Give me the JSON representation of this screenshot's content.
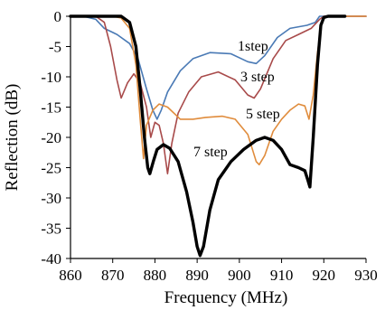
{
  "chart_data": {
    "type": "line",
    "xlabel": "Frequency (MHz)",
    "ylabel": "Reflection (dB)",
    "xlim": [
      860,
      930
    ],
    "ylim": [
      -40,
      0
    ],
    "x_ticks": [
      860,
      870,
      880,
      890,
      900,
      910,
      920,
      930
    ],
    "y_ticks": [
      0,
      -5,
      -10,
      -15,
      -20,
      -25,
      -30,
      -35,
      -40
    ],
    "grid": false,
    "legend": "none",
    "series": [
      {
        "name": "1step",
        "color": "#4a7ab5",
        "points": [
          [
            860,
            0
          ],
          [
            863,
            0
          ],
          [
            866,
            -0.5
          ],
          [
            868,
            -2
          ],
          [
            871,
            -3
          ],
          [
            874,
            -4.5
          ],
          [
            876,
            -7
          ],
          [
            878,
            -12
          ],
          [
            879.5,
            -15.5
          ],
          [
            880.5,
            -17
          ],
          [
            881.5,
            -15.5
          ],
          [
            883,
            -12.5
          ],
          [
            886,
            -9
          ],
          [
            889,
            -7
          ],
          [
            893,
            -6
          ],
          [
            898,
            -6.2
          ],
          [
            902,
            -7.5
          ],
          [
            904,
            -7.8
          ],
          [
            906,
            -6.5
          ],
          [
            909,
            -3.5
          ],
          [
            912,
            -2
          ],
          [
            916,
            -1.5
          ],
          [
            918,
            -1
          ],
          [
            919,
            0
          ],
          [
            921,
            0
          ],
          [
            930,
            0
          ]
        ]
      },
      {
        "name": "3 step",
        "color": "#a84a4a",
        "points": [
          [
            860,
            0
          ],
          [
            866,
            0
          ],
          [
            868,
            -1
          ],
          [
            869.5,
            -5
          ],
          [
            871,
            -10.5
          ],
          [
            872,
            -13.5
          ],
          [
            873.5,
            -11
          ],
          [
            875,
            -9.5
          ],
          [
            876.5,
            -11
          ],
          [
            878,
            -15
          ],
          [
            879,
            -20
          ],
          [
            880,
            -17.5
          ],
          [
            881,
            -18
          ],
          [
            882,
            -21
          ],
          [
            883,
            -26
          ],
          [
            884,
            -21
          ],
          [
            885.5,
            -16
          ],
          [
            888,
            -12.5
          ],
          [
            891,
            -10
          ],
          [
            895,
            -9.2
          ],
          [
            899,
            -10.5
          ],
          [
            902,
            -13
          ],
          [
            903.5,
            -13.5
          ],
          [
            905,
            -12
          ],
          [
            908,
            -7
          ],
          [
            911,
            -4
          ],
          [
            914,
            -3
          ],
          [
            917,
            -2
          ],
          [
            919,
            -0.5
          ],
          [
            920,
            0
          ],
          [
            930,
            0
          ]
        ]
      },
      {
        "name": "5 step",
        "color": "#e08c3c",
        "points": [
          [
            860,
            0
          ],
          [
            870,
            0
          ],
          [
            872,
            -0.3
          ],
          [
            874,
            -2
          ],
          [
            875.5,
            -8
          ],
          [
            876.5,
            -17
          ],
          [
            877.3,
            -23.5
          ],
          [
            878,
            -18
          ],
          [
            879.5,
            -15.5
          ],
          [
            881,
            -14.5
          ],
          [
            883,
            -15
          ],
          [
            886,
            -17
          ],
          [
            889,
            -17
          ],
          [
            892,
            -16.7
          ],
          [
            896,
            -16.5
          ],
          [
            899,
            -17
          ],
          [
            902,
            -19.5
          ],
          [
            904,
            -24
          ],
          [
            904.7,
            -24.5
          ],
          [
            906,
            -23
          ],
          [
            908,
            -19
          ],
          [
            910,
            -17
          ],
          [
            912,
            -15.5
          ],
          [
            914,
            -14.5
          ],
          [
            915.5,
            -14.8
          ],
          [
            916.5,
            -17
          ],
          [
            917.5,
            -13
          ],
          [
            918.5,
            -6
          ],
          [
            919.5,
            -1
          ],
          [
            920.5,
            0
          ],
          [
            930,
            0
          ]
        ]
      },
      {
        "name": "7 step",
        "color": "#000000",
        "points": [
          [
            860,
            0
          ],
          [
            872,
            0
          ],
          [
            874,
            -1
          ],
          [
            875.5,
            -5
          ],
          [
            876.5,
            -12
          ],
          [
            877.5,
            -20
          ],
          [
            878.3,
            -25
          ],
          [
            878.8,
            -26
          ],
          [
            879.6,
            -24
          ],
          [
            880.5,
            -22
          ],
          [
            882,
            -21.2
          ],
          [
            883.5,
            -21.8
          ],
          [
            885.5,
            -24
          ],
          [
            887.5,
            -29
          ],
          [
            889,
            -34
          ],
          [
            890,
            -38
          ],
          [
            890.7,
            -39.5
          ],
          [
            891.5,
            -38
          ],
          [
            893,
            -32
          ],
          [
            895,
            -27
          ],
          [
            898,
            -24
          ],
          [
            901,
            -22
          ],
          [
            904,
            -20.5
          ],
          [
            906,
            -20
          ],
          [
            908,
            -20.5
          ],
          [
            910,
            -22
          ],
          [
            912,
            -24.5
          ],
          [
            914,
            -25
          ],
          [
            915.5,
            -25.5
          ],
          [
            916.2,
            -27
          ],
          [
            916.7,
            -28.2
          ],
          [
            917.5,
            -20
          ],
          [
            918.5,
            -8
          ],
          [
            919.3,
            -1.5
          ],
          [
            920,
            -0.2
          ],
          [
            921,
            0
          ],
          [
            925,
            0
          ]
        ]
      }
    ],
    "annotations": [
      {
        "text": "1step"
      },
      {
        "text": "3 step"
      },
      {
        "text": "5 step"
      },
      {
        "text": "7 step"
      }
    ]
  }
}
